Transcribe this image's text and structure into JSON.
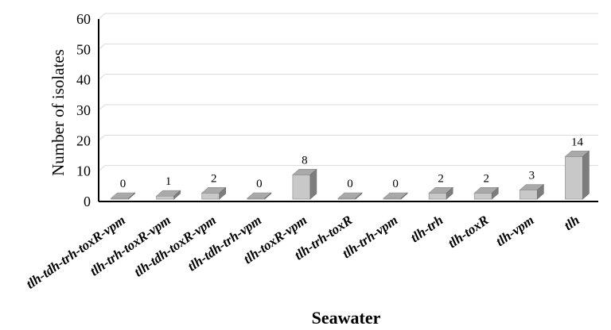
{
  "chart_data": {
    "type": "bar",
    "style": "3d-column",
    "categories": [
      "tlh-tdh-trh-toxR-vpm",
      "tlh-trh-toxR-vpm",
      "tlh-tdh-toxR-vpm",
      "tlh-tdh-trh-vpm",
      "tlh-toxR-vpm",
      "tlh-trh-toxR",
      "tlh-trh-vpm",
      "tlh-trh",
      "tlh-toxR",
      "tlh-vpm",
      "tlh"
    ],
    "values": [
      0,
      1,
      2,
      0,
      8,
      0,
      0,
      2,
      2,
      3,
      14
    ],
    "data_labels": [
      "0",
      "1",
      "2",
      "0",
      "8",
      "0",
      "0",
      "2",
      "2",
      "3",
      "14"
    ],
    "xlabel": "Seawater",
    "ylabel": "Number of isolates",
    "ylim": [
      0,
      60
    ],
    "yticks": [
      "0",
      "10",
      "20",
      "30",
      "40",
      "50",
      "60"
    ],
    "grid": true,
    "legend": "none",
    "colors": {
      "bar_front": "#c8c8c8",
      "bar_top": "#a9a9a9",
      "bar_side": "#7d7d7d",
      "grid": "#d9d9d9",
      "axis": "#000000"
    }
  }
}
